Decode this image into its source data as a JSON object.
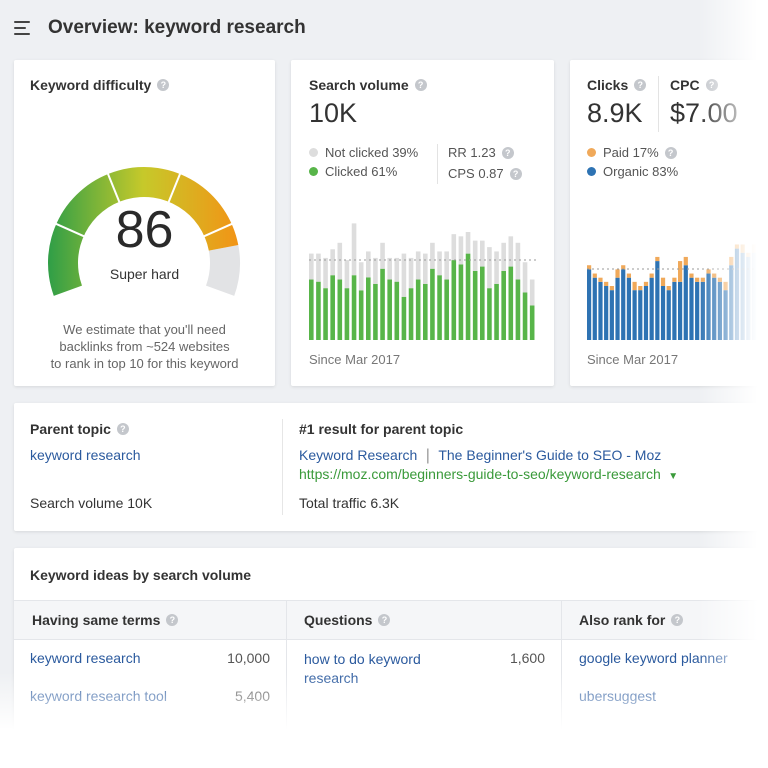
{
  "page": {
    "title": "Overview: keyword research"
  },
  "difficulty": {
    "title": "Keyword difficulty",
    "value": "86",
    "label": "Super hard",
    "gauge_level": 0.86,
    "note_lines": [
      "We estimate that you'll need",
      "backlinks from ~524 websites",
      "to rank in top 10 for this keyword"
    ],
    "colors": {
      "green": "#2f9e47",
      "yellow": "#c6c92a",
      "orange": "#f29416",
      "empty": "#e2e3e5"
    }
  },
  "volume": {
    "title": "Search volume",
    "value": "10K",
    "not_clicked": "Not clicked 39%",
    "clicked": "Clicked 61%",
    "rr": "RR 1.23",
    "cps": "CPS 0.87",
    "since": "Since Mar 2017",
    "colors": {
      "clicked": "#58b549",
      "not_clicked": "#dddddd"
    }
  },
  "clicks": {
    "title": "Clicks",
    "value": "8.9K",
    "paid": "Paid 17%",
    "organic": "Organic 83%",
    "since": "Since Mar 2017",
    "colors": {
      "paid": "#f0a95a",
      "organic": "#2e73b3"
    }
  },
  "cpc": {
    "title": "CPC",
    "value": "$7.00"
  },
  "parent_topic": {
    "title": "Parent topic",
    "link": "keyword research",
    "search_volume": "Search volume 10K",
    "result_title": "#1 result for parent topic",
    "result_link_a": "Keyword Research",
    "result_link_b": "The Beginner's Guide to SEO - Moz",
    "result_url": "https://moz.com/beginners-guide-to-seo/keyword-research",
    "total_traffic": "Total traffic 6.3K"
  },
  "ideas": {
    "title": "Keyword ideas by search volume",
    "columns": [
      {
        "header": "Having same terms",
        "rows": [
          {
            "keyword": "keyword research",
            "value": "10,000"
          },
          {
            "keyword": "keyword research tool",
            "value": "5,400"
          }
        ]
      },
      {
        "header": "Questions",
        "rows": [
          {
            "keyword": "how to do keyword research",
            "value": "1,600"
          }
        ]
      },
      {
        "header": "Also rank for",
        "rows": [
          {
            "keyword": "google keyword planner",
            "value": ""
          },
          {
            "keyword": "ubersuggest",
            "value": ""
          }
        ]
      }
    ]
  },
  "chart_data": [
    {
      "type": "bar",
      "series": [
        {
          "values": [
            28,
            27,
            24,
            30,
            28,
            24,
            30,
            23,
            29,
            26,
            33,
            28,
            27,
            20,
            24,
            28,
            26,
            33,
            30,
            28,
            37,
            35,
            40,
            32,
            34,
            24,
            26,
            32,
            34,
            28,
            22,
            16
          ]
        },
        {
          "values": [
            12,
            13,
            14,
            12,
            17,
            13,
            24,
            13,
            12,
            12,
            12,
            10,
            11,
            20,
            14,
            13,
            14,
            12,
            11,
            13,
            12,
            13,
            10,
            14,
            12,
            19,
            15,
            13,
            14,
            17,
            14,
            12
          ]
        }
      ]
    },
    {
      "type": "bar",
      "series": [
        {
          "values": [
            17,
            15,
            14,
            13,
            12,
            15,
            17,
            15,
            12,
            12,
            13,
            15,
            19,
            13,
            12,
            14,
            14,
            18,
            15,
            14,
            14,
            16,
            15,
            14,
            12,
            18,
            22,
            21,
            20,
            21,
            18,
            20
          ]
        },
        {
          "values": [
            1,
            1,
            1,
            1,
            1,
            2,
            1,
            1,
            2,
            1,
            1,
            1,
            1,
            2,
            1,
            1,
            5,
            2,
            1,
            1,
            1,
            1,
            1,
            1,
            2,
            2,
            1,
            2,
            1,
            2,
            3,
            2
          ]
        }
      ]
    }
  ]
}
